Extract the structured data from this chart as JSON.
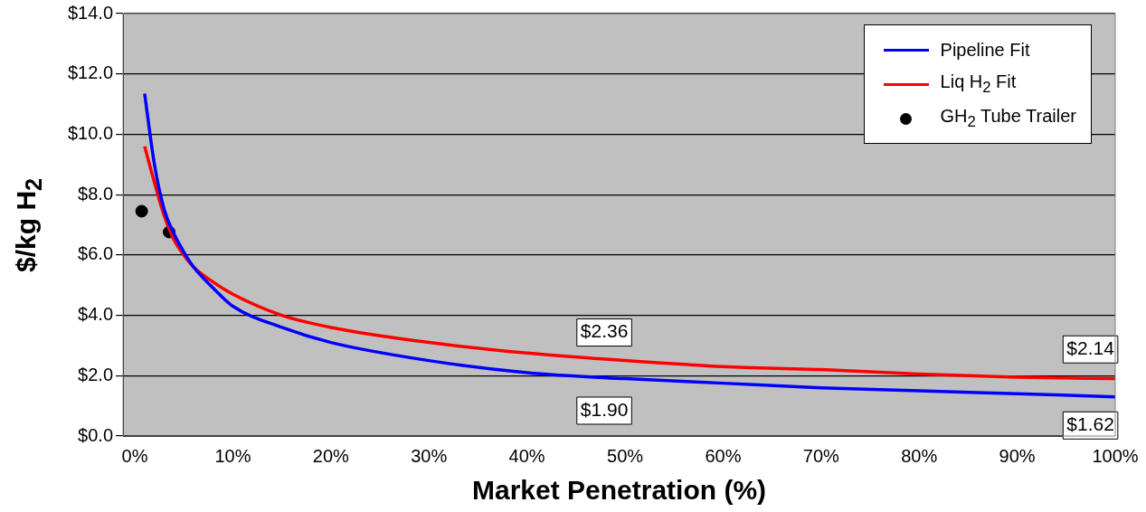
{
  "chart_data": {
    "type": "line",
    "xlabel": "Market Penetration (%)",
    "ylabel": "$/kg H$_{2}$",
    "xlim": [
      -1.2,
      100
    ],
    "ylim": [
      0,
      14
    ],
    "xticks": [
      {
        "value": 0,
        "label": "0%"
      },
      {
        "value": 10,
        "label": "10%"
      },
      {
        "value": 20,
        "label": "20%"
      },
      {
        "value": 30,
        "label": "30%"
      },
      {
        "value": 40,
        "label": "40%"
      },
      {
        "value": 50,
        "label": "50%"
      },
      {
        "value": 60,
        "label": "60%"
      },
      {
        "value": 70,
        "label": "70%"
      },
      {
        "value": 80,
        "label": "80%"
      },
      {
        "value": 90,
        "label": "90%"
      },
      {
        "value": 100,
        "label": "100%"
      }
    ],
    "yticks": [
      {
        "value": 0,
        "label": "$0.0"
      },
      {
        "value": 2,
        "label": "$2.0"
      },
      {
        "value": 4,
        "label": "$4.0"
      },
      {
        "value": 6,
        "label": "$6.0"
      },
      {
        "value": 8,
        "label": "$8.0"
      },
      {
        "value": 10,
        "label": "$10.0"
      },
      {
        "value": 12,
        "label": "$12.0"
      },
      {
        "value": 14,
        "label": "$14.0"
      }
    ],
    "grid": "y",
    "legend": "top right",
    "marker": "none",
    "line_style": "solid",
    "series": [
      {
        "name": "Pipeline Fit",
        "color": "#0000ff",
        "type": "line",
        "x": [
          1,
          2,
          3,
          4,
          5,
          6,
          8,
          10,
          15,
          20,
          30,
          40,
          50,
          60,
          70,
          80,
          90,
          100
        ],
        "values": [
          11.35,
          9.0,
          7.5,
          6.7,
          6.1,
          5.6,
          4.9,
          4.3,
          3.6,
          3.1,
          2.5,
          2.1,
          1.9,
          1.75,
          1.6,
          1.5,
          1.4,
          1.3
        ]
      },
      {
        "name": "Liq H$_{2}$ Fit",
        "color": "#ff0000",
        "type": "line",
        "x": [
          1,
          2,
          3,
          4,
          5,
          6,
          8,
          10,
          15,
          20,
          30,
          40,
          50,
          60,
          70,
          80,
          90,
          100
        ],
        "values": [
          9.6,
          8.4,
          7.3,
          6.5,
          6.0,
          5.6,
          5.1,
          4.7,
          4.0,
          3.6,
          3.1,
          2.75,
          2.5,
          2.3,
          2.2,
          2.05,
          1.95,
          1.9
        ]
      },
      {
        "name": "GH$_{2}$ Tube Trailer",
        "color": "#000000",
        "type": "scatter",
        "marker": "circle",
        "x": [
          0.7,
          3.5
        ],
        "values": [
          7.45,
          6.76
        ]
      }
    ],
    "annotations": [
      "$2.36",
      "$1.90",
      "$2.14",
      "$1.62"
    ]
  }
}
